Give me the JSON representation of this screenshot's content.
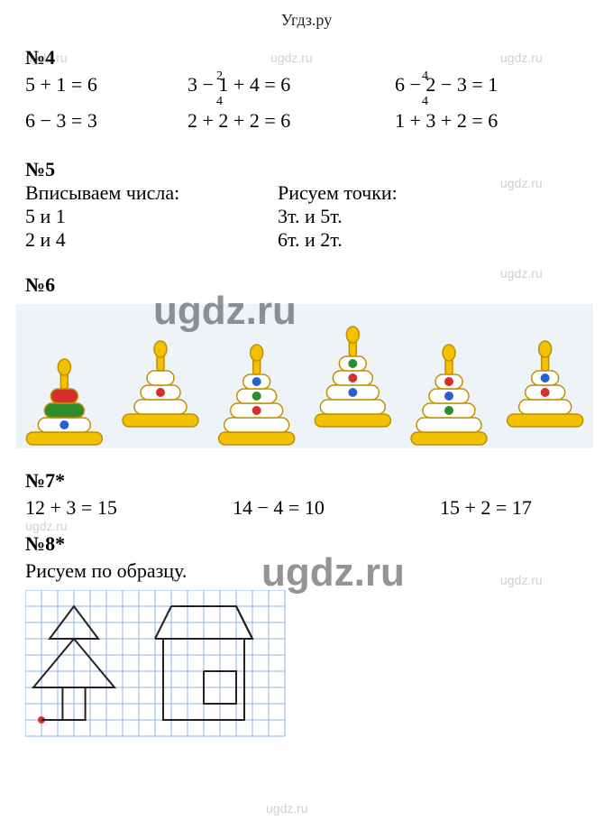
{
  "header": "Угдз.ру",
  "watermark": "ugdz.ru",
  "n4": {
    "title": "№4",
    "sup1_col2": "2",
    "sup1_col3": "4",
    "row1": {
      "c1": "5 + 1 = 6",
      "c2": "3 − 1 + 4 = 6",
      "c3": "6 − 2 − 3 = 1"
    },
    "sup2_col2": "4",
    "sup2_col3": "4",
    "row2": {
      "c1": "6 − 3 = 3",
      "c2": "2 + 2 + 2 = 6",
      "c3": "1 + 3 + 2 = 6"
    }
  },
  "n5": {
    "title": "№5",
    "left_head": "Вписываем числа:",
    "right_head": "Рисуем точки:",
    "left_1": "5 и 1",
    "left_2": "2 и 4",
    "right_1": "3т. и 5т.",
    "right_2": "6т. и 2т."
  },
  "n6": {
    "title": "№6",
    "pyramids": [
      {
        "rings": [
          "#d42e2e",
          "#2e8b2e",
          "#ffffff"
        ],
        "dot_ring": 2,
        "dot_color": "#2a5fd4"
      },
      {
        "rings": [
          "#ffffff",
          "#ffffff",
          "#ffffff"
        ],
        "dot_ring": 1,
        "dot_color": "#d42e2e"
      },
      {
        "rings": [
          "#ffffff",
          "#ffffff",
          "#ffffff",
          "#ffffff"
        ],
        "dots": [
          {
            "ring": 0,
            "color": "#2a5fd4"
          },
          {
            "ring": 1,
            "color": "#2e8b2e"
          },
          {
            "ring": 2,
            "color": "#d42e2e"
          }
        ]
      },
      {
        "rings": [
          "#ffffff",
          "#ffffff",
          "#ffffff",
          "#ffffff"
        ],
        "dots": [
          {
            "ring": 0,
            "color": "#2e8b2e"
          },
          {
            "ring": 1,
            "color": "#d42e2e"
          },
          {
            "ring": 2,
            "color": "#2a5fd4"
          }
        ]
      },
      {
        "rings": [
          "#ffffff",
          "#ffffff",
          "#ffffff",
          "#ffffff"
        ],
        "dots": [
          {
            "ring": 0,
            "color": "#d42e2e"
          },
          {
            "ring": 1,
            "color": "#2a5fd4"
          },
          {
            "ring": 2,
            "color": "#2e8b2e"
          }
        ]
      },
      {
        "rings": [
          "#ffffff",
          "#ffffff",
          "#ffffff"
        ],
        "dots": [
          {
            "ring": 0,
            "color": "#2a5fd4"
          },
          {
            "ring": 1,
            "color": "#d42e2e"
          }
        ]
      }
    ],
    "base_color": "#f2c200",
    "candle_color": "#f2c200",
    "outline": "#c09000",
    "bg": "#eef3f7"
  },
  "n7": {
    "title": "№7*",
    "c1": "12 + 3 = 15",
    "c2": "14 − 4 = 10",
    "c3": "15 + 2 = 17"
  },
  "n8": {
    "title": "№8*",
    "caption": "Рисуем по образцу.",
    "grid_color": "#8fb6e0",
    "line_color": "#222222",
    "dot_color": "#e03030",
    "cell": 18
  }
}
